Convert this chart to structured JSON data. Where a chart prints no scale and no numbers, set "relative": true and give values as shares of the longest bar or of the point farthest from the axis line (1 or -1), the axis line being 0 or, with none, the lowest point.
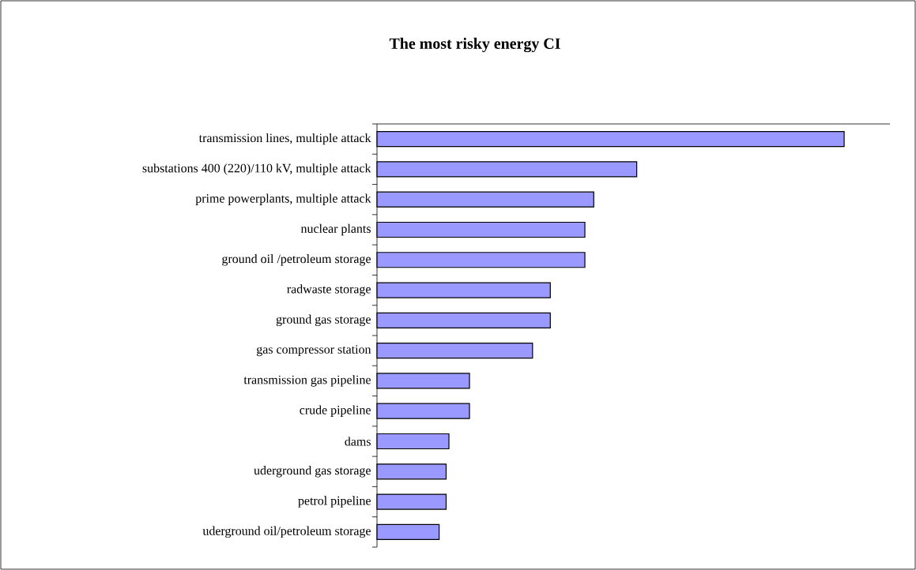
{
  "chart_data": {
    "type": "bar",
    "orientation": "horizontal",
    "relative": true,
    "title": "The most risky energy CI",
    "categories": [
      "transmission lines, multiple attack",
      "substations 400 (220)/110 kV, multiple attack",
      "prime powerplants, multiple attack",
      "nuclear plants",
      "ground oil /petroleum storage",
      "radwaste storage",
      "ground gas storage",
      "gas compressor station",
      "transmission gas pipeline",
      "crude pipeline",
      "dams",
      "uderground gas storage",
      "petrol pipeline",
      "uderground oil/petroleum storage"
    ],
    "values": [
      1,
      0.556,
      0.464,
      0.445,
      0.445,
      0.371,
      0.371,
      0.333,
      0.198,
      0.198,
      0.154,
      0.148,
      0.148,
      0.133
    ],
    "color": "#9999ff"
  }
}
